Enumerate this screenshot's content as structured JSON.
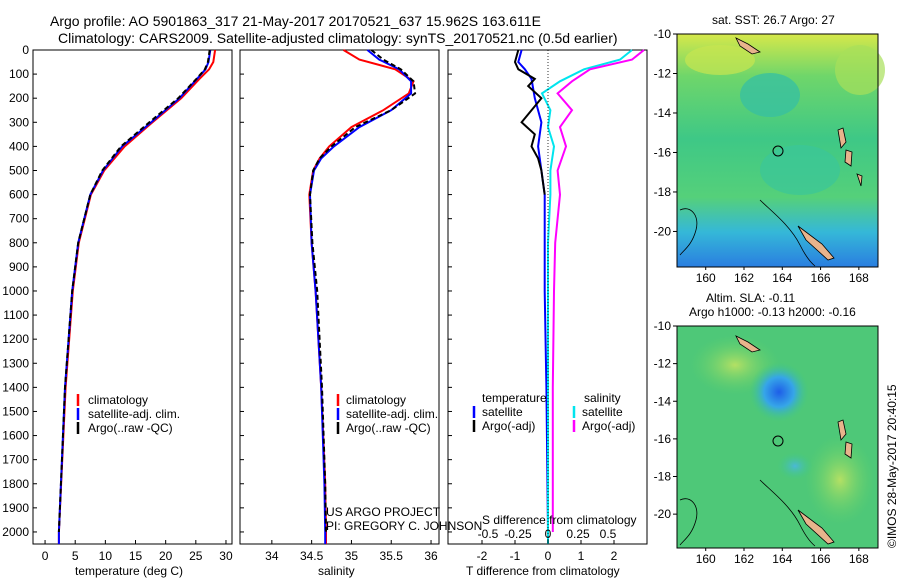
{
  "header": {
    "line1": "Argo profile: AO 5901863_317 21-May-2017 20170521_637 15.962S 163.611E",
    "line2": "Climatology: CARS2009. Satellite-adjusted climatology: synTS_20170521.nc (0.5d earlier)"
  },
  "colors": {
    "climatology": "#ff0000",
    "satellite": "#0000ff",
    "argo": "#000000",
    "salinity_sat": "#00e5ee",
    "salinity_argo": "#ff00ff"
  },
  "depth_axis": {
    "min": 0,
    "max": 2050,
    "ticks": [
      0,
      100,
      200,
      300,
      400,
      500,
      600,
      700,
      800,
      900,
      1000,
      1100,
      1200,
      1300,
      1400,
      1500,
      1600,
      1700,
      1800,
      1900,
      2000
    ]
  },
  "chart_data": [
    {
      "type": "line",
      "name": "temperature-panel",
      "xlabel": "temperature (deg C)",
      "xlim": [
        -2,
        31
      ],
      "xticks": [
        0,
        5,
        10,
        15,
        20,
        25,
        30
      ],
      "legend": [
        "climatology",
        "satellite-adj. clim.",
        "Argo(..raw -QC)"
      ],
      "series": [
        {
          "name": "climatology",
          "depth": [
            0,
            50,
            80,
            120,
            200,
            300,
            400,
            500,
            600,
            800,
            1000,
            1400,
            2000,
            2050
          ],
          "values": [
            28.2,
            27.9,
            27.2,
            25.6,
            22.6,
            17.8,
            13.2,
            9.8,
            7.6,
            5.6,
            4.6,
            3.4,
            2.3,
            2.3
          ]
        },
        {
          "name": "satellite-adj. clim.",
          "depth": [
            0,
            50,
            80,
            120,
            200,
            300,
            400,
            500,
            600,
            800,
            1000,
            1400,
            2000,
            2050
          ],
          "values": [
            27.4,
            27.1,
            26.6,
            25.2,
            22.3,
            17.6,
            12.8,
            9.6,
            7.5,
            5.5,
            4.5,
            3.3,
            2.3,
            2.3
          ]
        },
        {
          "name": "Argo(..raw -QC)",
          "depth": [
            0,
            50,
            80,
            120,
            200,
            300,
            400,
            500,
            600,
            800,
            1000,
            1400,
            2000
          ],
          "values": [
            27.3,
            27.0,
            26.5,
            25.1,
            22.1,
            17.3,
            12.6,
            9.5,
            7.5,
            5.5,
            4.5,
            3.3,
            2.3
          ]
        }
      ]
    },
    {
      "type": "line",
      "name": "salinity-panel",
      "xlabel": "salinity",
      "xlim": [
        33.6,
        36.1
      ],
      "xticks": [
        34,
        34.5,
        35,
        35.5,
        36
      ],
      "xticklabels": [
        "34",
        "34.5",
        "35",
        "35.5",
        "36"
      ],
      "legend": [
        "climatology",
        "satellite-adj. clim.",
        "Argo(..raw -QC)"
      ],
      "series": [
        {
          "name": "climatology",
          "depth": [
            0,
            40,
            80,
            130,
            180,
            250,
            320,
            400,
            450,
            500,
            600,
            800,
            1000,
            1400,
            1800,
            2000,
            2050
          ],
          "values": [
            34.9,
            35.1,
            35.55,
            35.78,
            35.72,
            35.4,
            35.0,
            34.72,
            34.6,
            34.52,
            34.47,
            34.5,
            34.55,
            34.62,
            34.67,
            34.68,
            34.68
          ]
        },
        {
          "name": "satellite-adj. clim.",
          "depth": [
            0,
            40,
            80,
            130,
            180,
            250,
            320,
            400,
            450,
            500,
            600,
            800,
            1000,
            1400,
            1800,
            2000,
            2050
          ],
          "values": [
            35.2,
            35.35,
            35.6,
            35.75,
            35.75,
            35.5,
            35.1,
            34.78,
            34.62,
            34.53,
            34.48,
            34.5,
            34.55,
            34.62,
            34.66,
            34.67,
            34.67
          ]
        },
        {
          "name": "Argo(..raw -QC)",
          "depth": [
            0,
            40,
            80,
            130,
            180,
            250,
            320,
            400,
            450,
            500,
            600,
            800,
            1000,
            1400,
            1800,
            2000
          ],
          "values": [
            35.25,
            35.4,
            35.62,
            35.78,
            35.8,
            35.5,
            35.05,
            34.75,
            34.6,
            34.52,
            34.48,
            34.51,
            34.57,
            34.63,
            34.67,
            34.68
          ]
        }
      ]
    },
    {
      "type": "line",
      "name": "difference-panel",
      "xlabel_top": "S difference from climatology",
      "xlabel": "T difference from climatology",
      "xlim": [
        -2.8,
        2.9
      ],
      "xticks": [
        -2,
        -1,
        0,
        1,
        2
      ],
      "sticks": [
        -0.5,
        -0.25,
        0,
        0.25,
        0.5
      ],
      "sticklabels": [
        "-0.5",
        "-0.25",
        "0",
        "0.25",
        "0.5"
      ],
      "legend_headers": [
        "temperature",
        "salinity"
      ],
      "legend": [
        "satellite",
        "Argo(-adj)",
        "satellite",
        "Argo(-adj)"
      ],
      "series": [
        {
          "name": "temperature satellite",
          "depth": [
            0,
            50,
            80,
            120,
            200,
            300,
            400,
            500,
            600,
            800,
            1000,
            1400,
            2000,
            2050
          ],
          "values": [
            -0.8,
            -0.9,
            -0.7,
            -0.5,
            -0.4,
            -0.2,
            -0.3,
            -0.2,
            -0.1,
            -0.1,
            -0.1,
            -0.05,
            0,
            0
          ]
        },
        {
          "name": "temperature Argo(-adj)",
          "depth": [
            0,
            50,
            80,
            120,
            150,
            200,
            250,
            300,
            350,
            400,
            450,
            500,
            550,
            600
          ],
          "values": [
            -0.9,
            -1.0,
            -0.9,
            -0.4,
            -0.6,
            -0.2,
            -0.5,
            -0.8,
            -0.4,
            -0.5,
            -0.3,
            -0.2,
            -0.15,
            -0.1
          ]
        },
        {
          "name": "salinity satellite",
          "depth": [
            0,
            40,
            80,
            130,
            180,
            250,
            320,
            400,
            500,
            600,
            800,
            1000,
            1400,
            2000,
            2050
          ],
          "values": [
            0.7,
            0.6,
            0.3,
            0.1,
            -0.05,
            0.02,
            0.0,
            0.05,
            0.02,
            0.02,
            0.0,
            0.0,
            0.0,
            0.0,
            0.0
          ]
        },
        {
          "name": "salinity Argo(-adj)",
          "depth": [
            0,
            40,
            80,
            130,
            180,
            250,
            320,
            400,
            500,
            600,
            800,
            1000,
            1400,
            2000
          ],
          "values": [
            0.8,
            0.7,
            0.35,
            0.2,
            0.08,
            0.2,
            0.1,
            0.15,
            0.08,
            0.1,
            0.06,
            0.05,
            0.04,
            0.04
          ]
        }
      ]
    }
  ],
  "maps": {
    "sst": {
      "title": "sat. SST: 26.7 Argo: 27",
      "yticks": [
        "-10",
        "-12",
        "-14",
        "-16",
        "-18",
        "-20"
      ],
      "xticks": [
        "160",
        "162",
        "164",
        "166",
        "168"
      ]
    },
    "sla": {
      "title1": "Altim. SLA: -0.11",
      "title2": "Argo h1000: -0.13 h2000: -0.16",
      "yticks": [
        "-10",
        "-12",
        "-14",
        "-16",
        "-18",
        "-20"
      ],
      "xticks": [
        "160",
        "162",
        "164",
        "166",
        "168"
      ]
    }
  },
  "credits": {
    "project": "US ARGO PROJECT",
    "pi": "PI: GREGORY C. JOHNSON",
    "imos": "©IMOS 28-May-2017 20:40:15"
  }
}
